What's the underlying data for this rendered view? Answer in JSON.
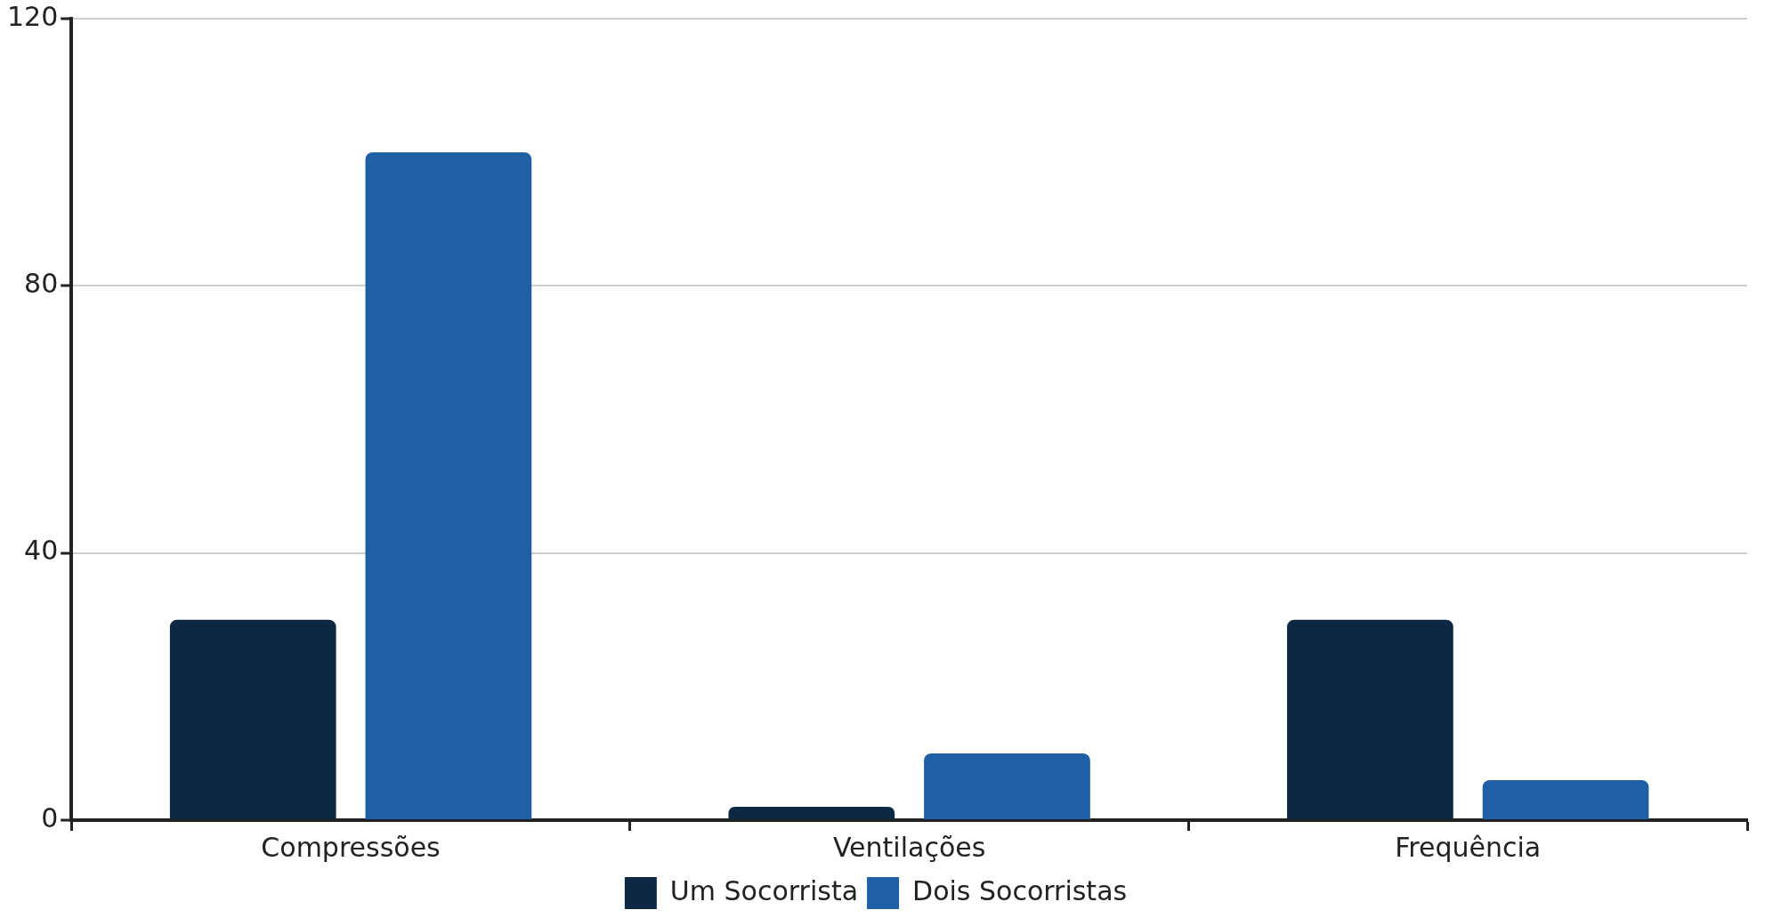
{
  "chart_data": {
    "type": "bar",
    "categories": [
      "Compressões",
      "Ventilações",
      "Frequência"
    ],
    "series": [
      {
        "name": "Um Socorrista",
        "color": "#0e2742",
        "values": [
          30,
          2,
          30
        ]
      },
      {
        "name": "Dois Socorristas",
        "color": "#1f5fa3",
        "values": [
          100,
          10,
          6
        ]
      }
    ],
    "ylim": [
      0,
      120
    ],
    "yticks": [
      0,
      40,
      80,
      120
    ],
    "grid": "y",
    "legend": "bottom"
  }
}
